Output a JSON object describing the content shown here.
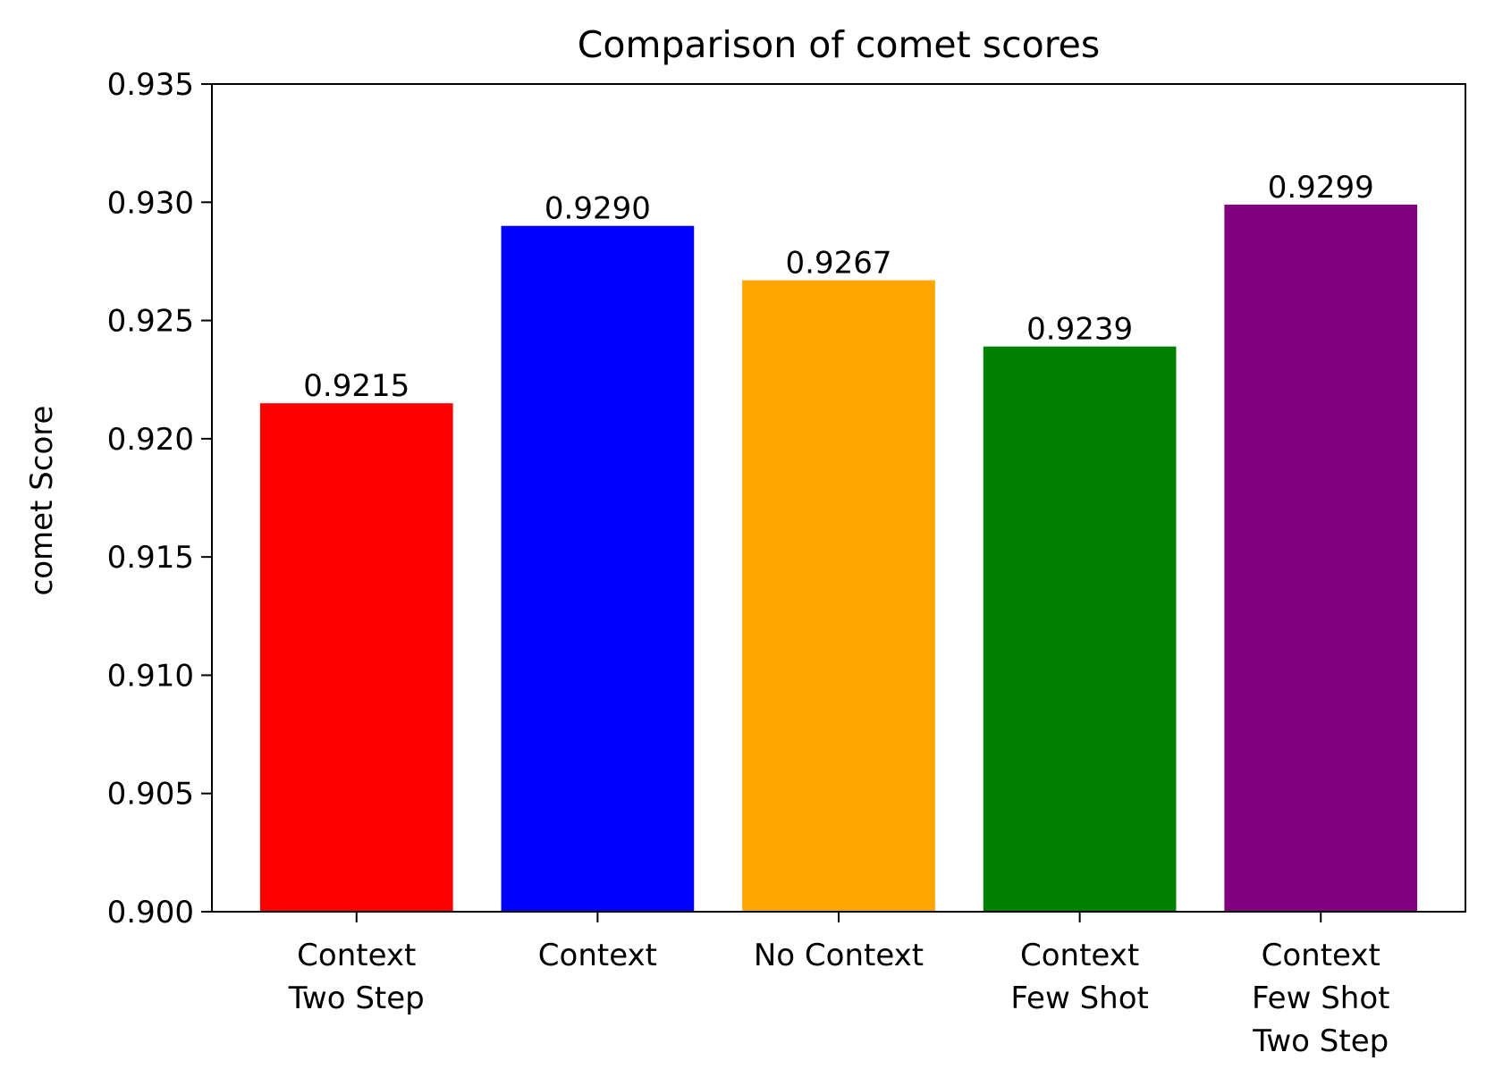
{
  "chart_data": {
    "type": "bar",
    "title": "Comparison of comet scores",
    "xlabel": "",
    "ylabel": "comet Score",
    "ylim": [
      0.9,
      0.935
    ],
    "yticks": [
      "0.900",
      "0.905",
      "0.910",
      "0.915",
      "0.920",
      "0.925",
      "0.930",
      "0.935"
    ],
    "categories": [
      [
        "Context",
        "Two Step"
      ],
      [
        "Context"
      ],
      [
        "No Context"
      ],
      [
        "Context",
        "Few Shot"
      ],
      [
        "Context",
        "Few Shot",
        "Two Step"
      ]
    ],
    "values": [
      0.9215,
      0.929,
      0.9267,
      0.9239,
      0.9299
    ],
    "value_labels": [
      "0.9215",
      "0.9290",
      "0.9267",
      "0.9239",
      "0.9299"
    ],
    "colors": [
      "#ff0000",
      "#0000ff",
      "#ffa500",
      "#008000",
      "#800080"
    ],
    "grid": false,
    "legend": "none"
  }
}
